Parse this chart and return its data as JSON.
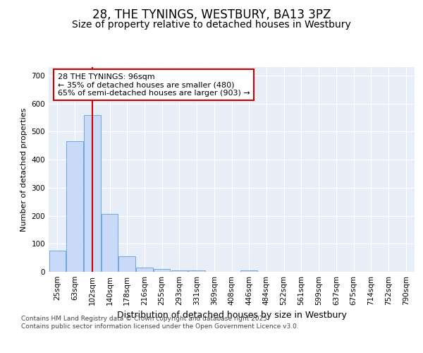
{
  "title": "28, THE TYNINGS, WESTBURY, BA13 3PZ",
  "subtitle": "Size of property relative to detached houses in Westbury",
  "xlabel": "Distribution of detached houses by size in Westbury",
  "ylabel": "Number of detached properties",
  "categories": [
    "25sqm",
    "63sqm",
    "102sqm",
    "140sqm",
    "178sqm",
    "216sqm",
    "255sqm",
    "293sqm",
    "331sqm",
    "369sqm",
    "408sqm",
    "446sqm",
    "484sqm",
    "522sqm",
    "561sqm",
    "599sqm",
    "637sqm",
    "675sqm",
    "714sqm",
    "752sqm",
    "790sqm"
  ],
  "values": [
    75,
    465,
    560,
    207,
    55,
    15,
    10,
    5,
    5,
    0,
    0,
    5,
    0,
    0,
    0,
    0,
    0,
    0,
    0,
    0,
    0
  ],
  "bar_color": "#c9daf8",
  "bar_edge_color": "#6fa8dc",
  "vline_x_index": 2.0,
  "vline_color": "#cc0000",
  "annotation_text": "28 THE TYNINGS: 96sqm\n← 35% of detached houses are smaller (480)\n65% of semi-detached houses are larger (903) →",
  "annotation_box_facecolor": "#ffffff",
  "annotation_box_edgecolor": "#cc0000",
  "ylim": [
    0,
    730
  ],
  "yticks": [
    0,
    100,
    200,
    300,
    400,
    500,
    600,
    700
  ],
  "plot_bg_color": "#e8eef8",
  "fig_bg_color": "#ffffff",
  "footer_text": "Contains HM Land Registry data © Crown copyright and database right 2025.\nContains public sector information licensed under the Open Government Licence v3.0.",
  "title_fontsize": 12,
  "subtitle_fontsize": 10,
  "xlabel_fontsize": 9,
  "ylabel_fontsize": 8,
  "tick_fontsize": 7.5,
  "annotation_fontsize": 8,
  "footer_fontsize": 6.5
}
